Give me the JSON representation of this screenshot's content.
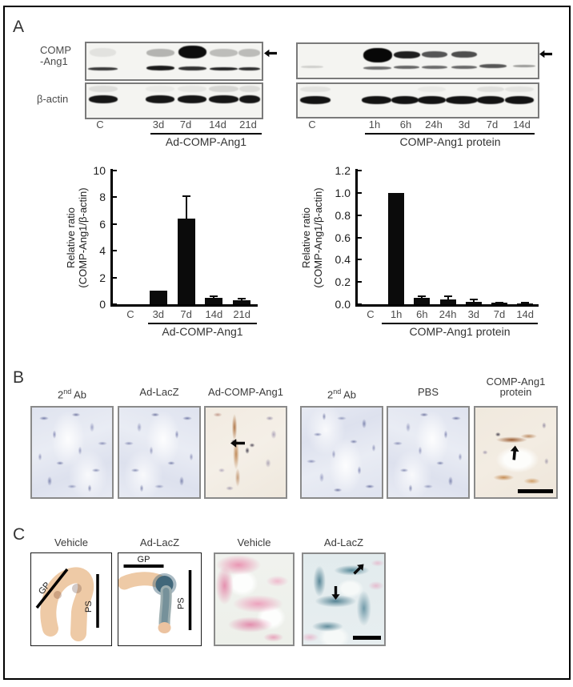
{
  "panel_a": {
    "label": "A",
    "left_blot": {
      "antibody_line1": "COMP",
      "antibody_line2": "-Ang1",
      "loading_control": "β-actin",
      "lanes": [
        "C",
        "3d",
        "7d",
        "14d",
        "21d"
      ],
      "group_label": "Ad-COMP-Ang1",
      "marker": "left-arrow"
    },
    "right_blot": {
      "lanes": [
        "C",
        "1h",
        "6h",
        "24h",
        "3d",
        "7d",
        "14d"
      ],
      "group_label": "COMP-Ang1 protein",
      "marker": "left-arrow"
    }
  },
  "chart_data": [
    {
      "type": "bar",
      "categories": [
        "C",
        "3d",
        "7d",
        "14d",
        "21d"
      ],
      "values": [
        0,
        1.0,
        6.4,
        0.45,
        0.3
      ],
      "errors": [
        0,
        0,
        1.7,
        0.15,
        0.1
      ],
      "ylabel_line1": "Relative ratio",
      "ylabel_line2": "(COMP-Ang1/β-actin)",
      "ytick_values": [
        0,
        2,
        4,
        6,
        8,
        10
      ],
      "ytick_labels": [
        "0",
        "2",
        "4",
        "6",
        "8",
        "10"
      ],
      "ylim": [
        0,
        10
      ],
      "group_label": "Ad-COMP-Ang1",
      "grid": false,
      "legend": null
    },
    {
      "type": "bar",
      "categories": [
        "C",
        "1h",
        "6h",
        "24h",
        "3d",
        "7d",
        "14d"
      ],
      "values": [
        0,
        1.0,
        0.06,
        0.04,
        0.025,
        0.012,
        0.008
      ],
      "errors": [
        0,
        0,
        0.01,
        0.03,
        0.015,
        0.005,
        0.004
      ],
      "ylabel_line1": "Relative ratio",
      "ylabel_line2": "(COMP-Ang1/β-actin)",
      "ytick_values": [
        0,
        0.2,
        0.4,
        0.6,
        0.8,
        1.0,
        1.2
      ],
      "ytick_labels": [
        "0.0",
        "0.2",
        "0.4",
        "0.6",
        "0.8",
        "1.0",
        "1.2"
      ],
      "ylim": [
        0,
        1.2
      ],
      "group_label": "COMP-Ang1 protein",
      "grid": false,
      "legend": null
    }
  ],
  "panel_b": {
    "label": "B",
    "images": [
      {
        "label_pre": "2",
        "label_sup": "nd",
        "label_post": " Ab"
      },
      {
        "label": "Ad-LacZ"
      },
      {
        "label": "Ad-COMP-Ang1",
        "annotation": "left-arrow"
      },
      {
        "label_pre": "2",
        "label_sup": "nd",
        "label_post": " Ab"
      },
      {
        "label": "PBS"
      },
      {
        "label_line1": "COMP-Ang1",
        "label_line2": "protein",
        "annotation": "up-arrow",
        "scale_bar": true
      }
    ]
  },
  "panel_c": {
    "label": "C",
    "specimens": [
      {
        "label": "Vehicle",
        "gp": "GP",
        "ps": "PS"
      },
      {
        "label": "Ad-LacZ",
        "gp": "GP",
        "ps": "PS"
      }
    ],
    "histology": [
      {
        "label": "Vehicle"
      },
      {
        "label": "Ad-LacZ",
        "annotation": "two-arrows",
        "scale_bar": true
      }
    ]
  },
  "colors": {
    "bar_fill": "#0b0b0b",
    "hematoxylin_tint": "#e8eaf2",
    "dab_brown": "#b5793f",
    "eosin_pink": "#e87ca0",
    "xgal_teal": "#3c7688"
  }
}
